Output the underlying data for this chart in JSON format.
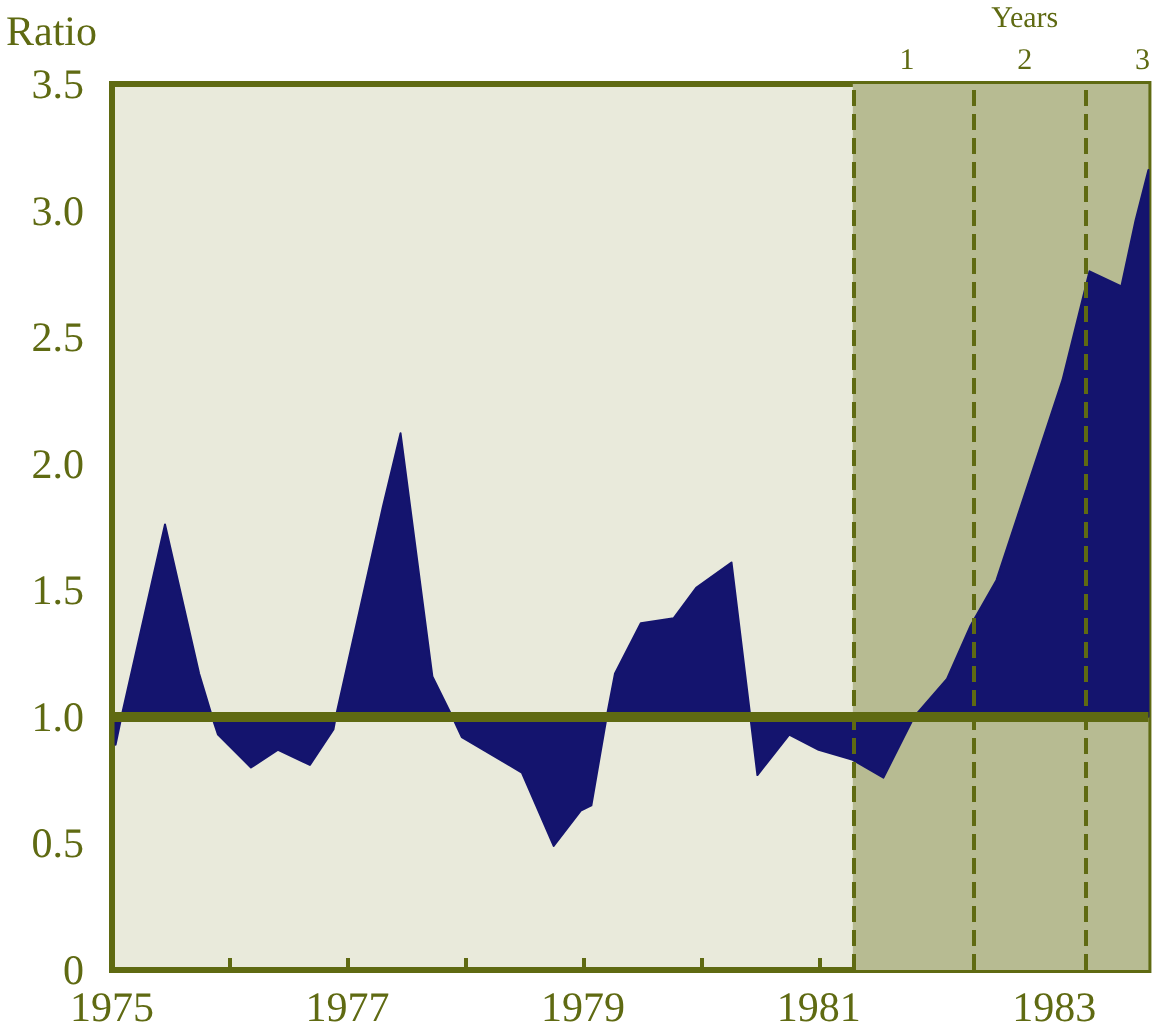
{
  "chart_data": {
    "type": "area",
    "ylabel": "Ratio",
    "x2label": "Years",
    "xlim": [
      1975,
      1983.8
    ],
    "xticks": [
      1975,
      {
        "value": 1976,
        "label": null
      },
      1977,
      {
        "value": 1978,
        "label": null
      },
      1979,
      {
        "value": 1980,
        "label": null
      },
      1981,
      {
        "value": 1982,
        "label": null
      },
      1983
    ],
    "x2lim": [
      -5.75,
      3.05
    ],
    "x2ticks": [
      1,
      2,
      3
    ],
    "ylim": [
      0,
      3.5
    ],
    "yticks": [
      0,
      0.5,
      {
        "value": 1,
        "label": "1.0"
      },
      1.5,
      {
        "value": 2,
        "label": "2.0"
      },
      2.5,
      {
        "value": 3,
        "label": "3.0"
      },
      3.5
    ],
    "series": [
      {
        "color": "#14146e",
        "x": [
          1975.03,
          1975.08,
          1975.45,
          1975.74,
          1975.85,
          1975.9,
          1976.18,
          1976.41,
          1976.68,
          1976.88,
          1976.9,
          1977.3,
          1977.45,
          1977.72,
          1977.89,
          1977.97,
          1978.48,
          1978.75,
          1978.98,
          1979.07,
          1979.2,
          1979.27,
          1979.49,
          1979.77,
          1979.96,
          1980.26,
          1980.42,
          1980.48,
          1980.75,
          1981.0,
          1981.29,
          1981.55,
          1981.81,
          1982.09,
          1982.29,
          1982.51,
          1983.07,
          1983.3,
          1983.57,
          1983.69,
          1983.8
        ],
        "values": [
          0.89,
          1.0,
          1.76,
          1.17,
          1.0,
          0.93,
          0.8,
          0.87,
          0.81,
          0.95,
          1.0,
          1.83,
          2.12,
          1.16,
          1.0,
          0.92,
          0.78,
          0.49,
          0.63,
          0.65,
          1.0,
          1.17,
          1.37,
          1.39,
          1.51,
          1.61,
          1.0,
          0.77,
          0.93,
          0.87,
          0.83,
          0.76,
          1.0,
          1.15,
          1.36,
          1.54,
          2.33,
          2.76,
          2.7,
          2.96,
          3.16
        ]
      }
    ],
    "ref_lines": [
      {
        "axis": "y",
        "value": 1,
        "color": "#5f6a12",
        "line_style": "solid"
      },
      {
        "axis": "x",
        "value": 1981.29,
        "color": "#5f6a12",
        "line_style": "dashed"
      },
      {
        "axis": "x",
        "value": 1982.31,
        "color": "#5f6a12",
        "line_style": "dashed"
      },
      {
        "axis": "x",
        "value": 1983.27,
        "color": "#5f6a12",
        "line_style": "dashed"
      }
    ],
    "bands": [
      {
        "axis": "x",
        "from": 1981.29,
        "to": 1983.8,
        "color": "#b7bb92"
      }
    ],
    "grid": false
  }
}
